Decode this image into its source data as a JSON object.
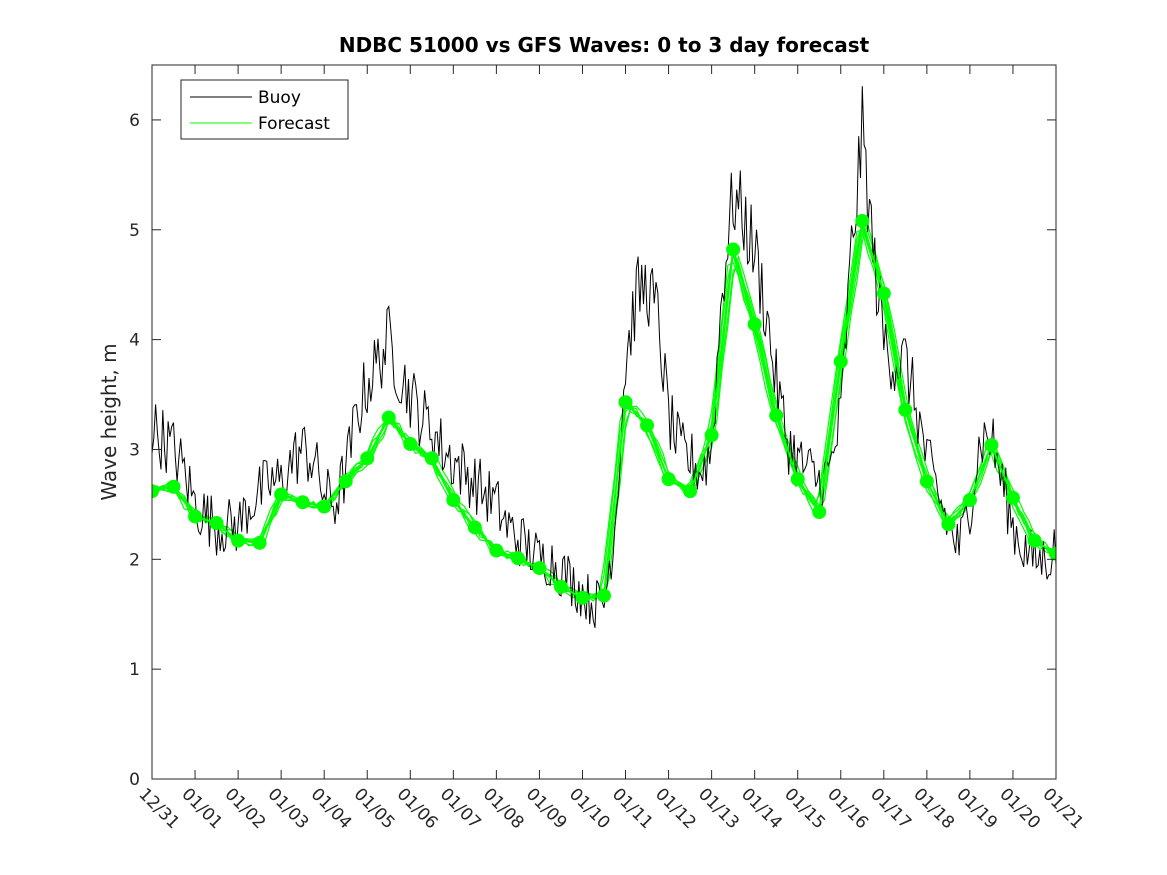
{
  "chart_data": {
    "type": "line",
    "title": "NDBC 51000 vs GFS Waves: 0 to 3 day forecast",
    "xlabel": "",
    "ylabel": "Wave height, m",
    "x_ticks": [
      "12/31",
      "01/01",
      "01/02",
      "01/03",
      "01/04",
      "01/05",
      "01/06",
      "01/07",
      "01/08",
      "01/09",
      "01/10",
      "01/11",
      "01/12",
      "01/13",
      "01/14",
      "01/15",
      "01/16",
      "01/17",
      "01/18",
      "01/19",
      "01/20",
      "01/21"
    ],
    "xlim": [
      0,
      21
    ],
    "ylim": [
      0,
      6.5
    ],
    "y_ticks": [
      0,
      1,
      2,
      3,
      4,
      5,
      6
    ],
    "grid": false,
    "legend_position": "top-left",
    "legend": [
      "Buoy",
      "Forecast"
    ],
    "colors": {
      "buoy": "#000000",
      "forecast": "#00ff00"
    },
    "series": [
      {
        "name": "Buoy",
        "x": [
          0,
          0.25,
          0.5,
          0.75,
          1,
          1.25,
          1.5,
          1.75,
          2,
          2.25,
          2.5,
          2.75,
          3,
          3.25,
          3.5,
          3.75,
          4,
          4.25,
          4.5,
          4.75,
          5,
          5.25,
          5.5,
          5.75,
          6,
          6.25,
          6.5,
          6.75,
          7,
          7.25,
          7.5,
          7.75,
          8,
          8.25,
          8.5,
          8.75,
          9,
          9.25,
          9.5,
          9.75,
          10,
          10.25,
          10.5,
          10.75,
          11,
          11.25,
          11.5,
          11.75,
          12,
          12.25,
          12.5,
          12.75,
          13,
          13.25,
          13.5,
          13.75,
          14,
          14.25,
          14.5,
          14.75,
          15,
          15.25,
          15.5,
          15.75,
          16,
          16.25,
          16.5,
          16.75,
          17,
          17.25,
          17.5,
          17.75,
          18,
          18.25,
          18.5,
          18.75,
          19,
          19.25,
          19.5,
          19.75,
          20,
          20.25,
          20.5,
          20.75,
          21
        ],
        "y": [
          3.2,
          3.1,
          3.0,
          2.8,
          2.5,
          2.4,
          2.3,
          2.3,
          2.3,
          2.5,
          2.6,
          2.7,
          2.7,
          2.9,
          3.0,
          2.9,
          2.6,
          2.5,
          2.8,
          3.3,
          3.6,
          3.8,
          4.0,
          3.7,
          3.5,
          3.3,
          3.2,
          3.0,
          2.9,
          2.8,
          2.7,
          2.6,
          2.5,
          2.3,
          2.2,
          2.1,
          2.0,
          2.0,
          1.9,
          1.8,
          1.7,
          1.6,
          1.6,
          2.3,
          3.8,
          4.4,
          4.5,
          4.2,
          3.3,
          3.0,
          2.9,
          2.8,
          3.0,
          4.5,
          5.3,
          5.1,
          4.8,
          4.3,
          3.6,
          3.1,
          2.9,
          2.8,
          2.7,
          2.8,
          3.3,
          4.8,
          5.9,
          4.8,
          4.0,
          3.8,
          3.8,
          3.4,
          2.9,
          2.6,
          2.3,
          2.1,
          2.5,
          3.1,
          3.1,
          2.7,
          2.3,
          2.1,
          2.0,
          2.0,
          2.1
        ]
      },
      {
        "name": "Forecast",
        "x": [
          0,
          0.5,
          1,
          1.5,
          2,
          2.5,
          3,
          3.5,
          4,
          4.5,
          5,
          5.5,
          6,
          6.5,
          7,
          7.5,
          8,
          8.5,
          9,
          9.5,
          10,
          10.5,
          11,
          11.5,
          12,
          12.5,
          13,
          13.5,
          14,
          14.5,
          15,
          15.5,
          16,
          16.5,
          17,
          17.5,
          18,
          18.5,
          19,
          19.5,
          20,
          20.5,
          21
        ],
        "y": [
          2.62,
          2.66,
          2.39,
          2.33,
          2.17,
          2.15,
          2.59,
          2.52,
          2.48,
          2.71,
          2.92,
          3.29,
          3.05,
          2.92,
          2.54,
          2.29,
          2.08,
          2.01,
          1.92,
          1.75,
          1.65,
          1.67,
          3.43,
          3.22,
          2.73,
          2.62,
          3.13,
          4.82,
          4.14,
          3.31,
          2.73,
          2.43,
          3.8,
          5.08,
          4.42,
          3.36,
          2.71,
          2.32,
          2.54,
          3.04,
          2.56,
          2.17,
          2.05
        ]
      }
    ]
  }
}
